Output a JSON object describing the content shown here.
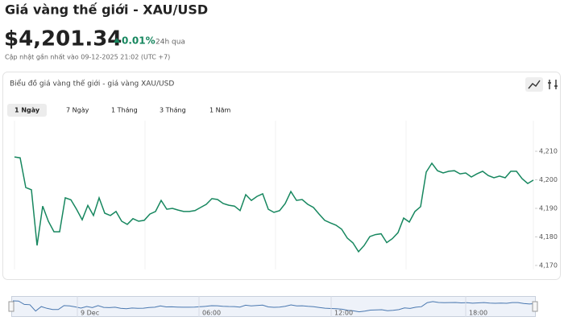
{
  "header": {
    "title": "Giá vàng thế giới - XAU/USD",
    "price": "$4,201.34",
    "change": "0.01%",
    "period": "24h qua",
    "updated": "Cập nhật gần nhất vào 09-12-2025 21:02 (UTC +7)"
  },
  "card_title": "Biểu đồ giá vàng thế giới - giá vàng XAU/USD",
  "tabs": [
    "1 Ngày",
    "7 Ngày",
    "1 Tháng",
    "3 Tháng",
    "1 Năm"
  ],
  "chart_data": {
    "type": "line",
    "color": "#17875f",
    "values": [
      4208,
      4207.7,
      4197.3,
      4196.5,
      4177,
      4190.8,
      4185.5,
      4181.8,
      4181.8,
      4193.7,
      4193,
      4189.7,
      4186,
      4191,
      4187.5,
      4193.7,
      4188.3,
      4187.5,
      4188.9,
      4185.5,
      4184.4,
      4186.4,
      4185.5,
      4185.8,
      4188,
      4188.9,
      4192.8,
      4189.7,
      4190,
      4189.4,
      4188.9,
      4188.9,
      4189.2,
      4190.3,
      4191.4,
      4193.4,
      4193.1,
      4191.7,
      4191.1,
      4190.8,
      4189.2,
      4194.8,
      4192.8,
      4194.2,
      4195.1,
      4189.7,
      4188.6,
      4189.2,
      4191.7,
      4195.9,
      4192.8,
      4193.1,
      4191.4,
      4190.3,
      4188,
      4185.8,
      4184.9,
      4184.1,
      4182.7,
      4179.6,
      4177.9,
      4174.8,
      4177,
      4180.1,
      4180.8,
      4181.1,
      4178,
      4179.4,
      4181.5,
      4186.6,
      4185.2,
      4188.9,
      4190.6,
      4202.7,
      4205.8,
      4203.2,
      4202.4,
      4203,
      4203.2,
      4202.1,
      4202.4,
      4201,
      4202.1,
      4203,
      4201.5,
      4200.7,
      4201.3,
      4200.7,
      4203,
      4203,
      4200.4,
      4198.7,
      4199.9
    ],
    "ylim": [
      4169,
      4213
    ],
    "yticks": [
      {
        "value": 4170,
        "label": "4,170"
      },
      {
        "value": 4180,
        "label": "4,180"
      },
      {
        "value": 4190,
        "label": "4,190"
      },
      {
        "value": 4200,
        "label": "4,200"
      },
      {
        "value": 4210,
        "label": "4,210"
      }
    ],
    "navigator_labels": [
      "9 Dec",
      "06:00",
      "12:00",
      "18:00"
    ]
  }
}
